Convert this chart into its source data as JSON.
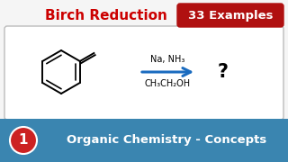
{
  "bg_color": "#f5f5f5",
  "title_text": "Birch Reduction",
  "title_color": "#cc0000",
  "badge_text": "33 Examples",
  "badge_bg": "#b01010",
  "badge_text_color": "#ffffff",
  "box_bg": "#ffffff",
  "box_border": "#cccccc",
  "arrow_color": "#1a6bbf",
  "reagent_top": "Na, NH₃",
  "reagent_bot": "CH₃CH₂OH",
  "question_mark": "?",
  "footer_bg": "#3a85b0",
  "footer_text": "Organic Chemistry - Concepts",
  "footer_text_color": "#ffffff",
  "circle_bg": "#cc2222",
  "circle_text": "1",
  "circle_text_color": "#ffffff"
}
